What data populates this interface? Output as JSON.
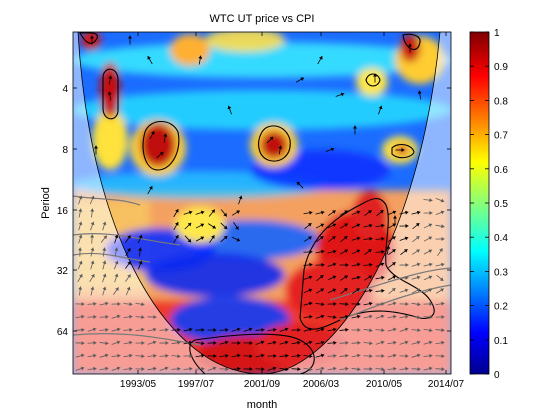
{
  "chart_data": {
    "type": "heatmap",
    "title": "WTC UT price vs CPI",
    "xlabel": "month",
    "ylabel": "Period",
    "x_tick_labels": [
      "1993/05",
      "1997/07",
      "2001/09",
      "2006/03",
      "2010/05",
      "2014/07"
    ],
    "y_ticks": [
      4,
      8,
      16,
      32,
      64
    ],
    "y_scale": "log2",
    "y_reversed": true,
    "colorbar": {
      "min": 0,
      "max": 1,
      "ticks": [
        0,
        0.1,
        0.2,
        0.3,
        0.4,
        0.5,
        0.6,
        0.7,
        0.8,
        0.9,
        1
      ],
      "colormap": "jet"
    },
    "overlays": [
      "cone of influence",
      "phase arrows",
      "significance contours"
    ],
    "grid": false
  }
}
